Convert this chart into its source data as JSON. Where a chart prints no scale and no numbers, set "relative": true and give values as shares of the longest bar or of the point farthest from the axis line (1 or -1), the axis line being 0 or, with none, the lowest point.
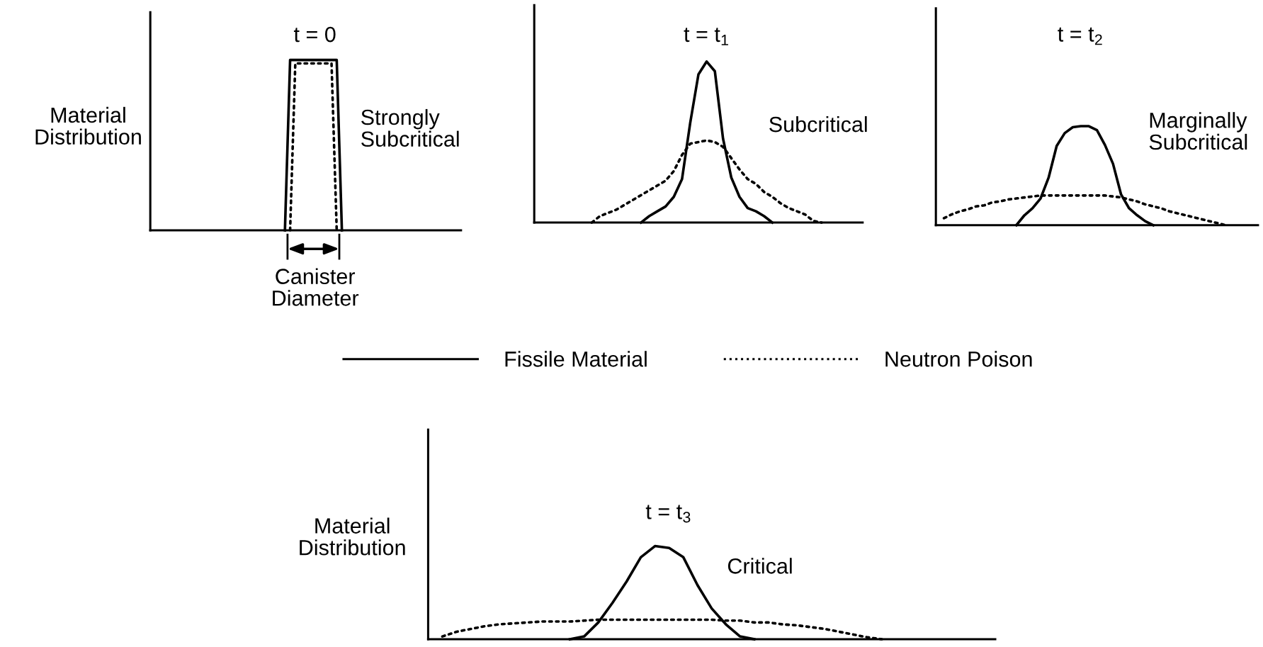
{
  "chart_data": [
    {
      "type": "line",
      "relative": true,
      "title": "t = 0",
      "ylabel": "Material\nDistribution",
      "tick_labels": false,
      "legend": "bottom",
      "annotations": [
        "Strongly\nSubcritical",
        "Canister\nDiameter"
      ],
      "categories": [
        null,
        null,
        null,
        null,
        null,
        null,
        null,
        null,
        null,
        null,
        null,
        null,
        null,
        null,
        null,
        null,
        null,
        null,
        null,
        null,
        null,
        null,
        null,
        null,
        null,
        null,
        null,
        null,
        null,
        null,
        null,
        null,
        null,
        null,
        null,
        null,
        null,
        null,
        null,
        null,
        null,
        null,
        null,
        null,
        null,
        null,
        null,
        null,
        null,
        null,
        null,
        null,
        null,
        null,
        null,
        null,
        null,
        null,
        null,
        null,
        null
      ],
      "series": [
        {
          "name": "Fissile Material",
          "color": "#000000",
          "line_style": "solid",
          "values": [
            null,
            null,
            null,
            null,
            null,
            null,
            null,
            null,
            null,
            null,
            null,
            null,
            null,
            null,
            null,
            null,
            null,
            null,
            null,
            null,
            null,
            null,
            null,
            null,
            null,
            null,
            0,
            1,
            1,
            1,
            1,
            1,
            1,
            1,
            1,
            1,
            1,
            0,
            null,
            null,
            null,
            null,
            null,
            null,
            null,
            null,
            null,
            null,
            null,
            null,
            null,
            null,
            null,
            null,
            null,
            null,
            null,
            null,
            null,
            null,
            null
          ]
        },
        {
          "name": "Neutron Poison",
          "color": "#000000",
          "line_style": "dotted",
          "values": [
            null,
            null,
            null,
            null,
            null,
            null,
            null,
            null,
            null,
            null,
            null,
            null,
            null,
            null,
            null,
            null,
            null,
            null,
            null,
            null,
            null,
            null,
            null,
            null,
            null,
            null,
            null,
            0,
            0.98,
            0.98,
            0.98,
            0.98,
            0.98,
            0.98,
            0.98,
            0.98,
            0,
            null,
            null,
            null,
            null,
            null,
            null,
            null,
            null,
            null,
            null,
            null,
            null,
            null,
            null,
            null,
            null,
            null,
            null,
            null,
            null,
            null,
            null,
            null,
            null
          ]
        }
      ]
    },
    {
      "type": "line",
      "relative": true,
      "title": "t = t$_{1}$",
      "tick_labels": false,
      "annotations": [
        "Subcritical"
      ],
      "categories": [
        null,
        null,
        null,
        null,
        null,
        null,
        null,
        null,
        null,
        null,
        null,
        null,
        null,
        null,
        null,
        null,
        null,
        null,
        null,
        null,
        null,
        null,
        null,
        null,
        null,
        null,
        null,
        null,
        null,
        null,
        null,
        null,
        null,
        null,
        null,
        null,
        null,
        null,
        null,
        null,
        null
      ],
      "series": [
        {
          "color": "#000000",
          "line_style": "solid",
          "values": [
            null,
            null,
            null,
            null,
            null,
            null,
            null,
            null,
            null,
            null,
            null,
            null,
            null,
            0,
            0.04,
            0.07,
            0.1,
            0.16,
            0.27,
            0.62,
            0.92,
            1.0,
            0.94,
            0.52,
            0.28,
            0.16,
            0.09,
            0.07,
            0.04,
            0,
            null,
            null,
            null,
            null,
            null,
            null,
            null,
            null,
            null,
            null,
            null
          ]
        },
        {
          "color": "#000000",
          "line_style": "dotted",
          "values": [
            null,
            null,
            null,
            null,
            null,
            null,
            null,
            0,
            0.04,
            0.06,
            0.08,
            0.11,
            0.14,
            0.17,
            0.2,
            0.23,
            0.26,
            0.32,
            0.42,
            0.49,
            0.5,
            0.51,
            0.5,
            0.47,
            0.4,
            0.33,
            0.27,
            0.24,
            0.19,
            0.16,
            0.12,
            0.09,
            0.07,
            0.05,
            0.01,
            0,
            null,
            null,
            null,
            null,
            null
          ]
        }
      ]
    },
    {
      "type": "line",
      "relative": true,
      "title": "t = t$_{2}$",
      "tick_labels": false,
      "annotations": [
        "Marginally\nSubcritical"
      ],
      "categories": [
        null,
        null,
        null,
        null,
        null,
        null,
        null,
        null,
        null,
        null,
        null,
        null,
        null,
        null,
        null,
        null,
        null,
        null,
        null,
        null,
        null,
        null,
        null,
        null,
        null,
        null,
        null,
        null,
        null,
        null,
        null,
        null,
        null,
        null,
        null,
        null,
        null,
        null,
        null,
        null,
        null
      ],
      "series": [
        {
          "color": "#000000",
          "line_style": "solid",
          "values": [
            null,
            null,
            null,
            null,
            null,
            null,
            null,
            null,
            null,
            null,
            0,
            0.1,
            0.17,
            0.27,
            0.48,
            0.8,
            0.93,
            0.99,
            1.0,
            1.0,
            0.96,
            0.81,
            0.62,
            0.31,
            0.17,
            0.1,
            0.04,
            0,
            null,
            null,
            null,
            null,
            null,
            null,
            null,
            null,
            null,
            null,
            null,
            null,
            null
          ]
        },
        {
          "color": "#000000",
          "line_style": "dotted",
          "values": [
            null,
            0.07,
            0.11,
            0.14,
            0.16,
            0.19,
            0.2,
            0.23,
            0.24,
            0.26,
            0.27,
            0.28,
            0.29,
            0.3,
            0.3,
            0.3,
            0.3,
            0.3,
            0.3,
            0.3,
            0.3,
            0.3,
            0.29,
            0.28,
            0.26,
            0.24,
            0.21,
            0.19,
            0.17,
            0.14,
            0.12,
            0.1,
            0.08,
            0.06,
            0.04,
            0.02,
            0,
            null,
            null,
            null,
            null
          ]
        }
      ]
    },
    {
      "type": "line",
      "relative": true,
      "title": "t = t$_{3}$",
      "ylabel": "Material\nDistribution",
      "tick_labels": false,
      "annotations": [
        "Critical"
      ],
      "categories": [
        null,
        null,
        null,
        null,
        null,
        null,
        null,
        null,
        null,
        null,
        null,
        null,
        null,
        null,
        null,
        null,
        null,
        null,
        null,
        null,
        null,
        null,
        null,
        null,
        null,
        null,
        null,
        null,
        null,
        null,
        null,
        null,
        null,
        null,
        null,
        null,
        null,
        null,
        null,
        null,
        null
      ],
      "series": [
        {
          "color": "#000000",
          "line_style": "solid",
          "values": [
            null,
            null,
            null,
            null,
            null,
            null,
            null,
            null,
            null,
            null,
            0,
            0.03,
            0.18,
            0.39,
            0.62,
            0.88,
            1.0,
            0.98,
            0.88,
            0.58,
            0.33,
            0.16,
            0.03,
            0,
            null,
            null,
            null,
            null,
            null,
            null,
            null,
            null,
            null,
            null,
            null,
            null,
            null,
            null,
            null,
            null,
            null
          ]
        },
        {
          "color": "#000000",
          "line_style": "dotted",
          "values": [
            null,
            0.03,
            0.08,
            0.11,
            0.14,
            0.16,
            0.17,
            0.18,
            0.19,
            0.19,
            0.19,
            0.2,
            0.21,
            0.21,
            0.21,
            0.21,
            0.21,
            0.21,
            0.21,
            0.21,
            0.21,
            0.2,
            0.2,
            0.18,
            0.18,
            0.16,
            0.15,
            0.13,
            0.11,
            0.08,
            0.05,
            0.02,
            0,
            null,
            null,
            null,
            null,
            null,
            null,
            null,
            null
          ]
        }
      ]
    }
  ]
}
